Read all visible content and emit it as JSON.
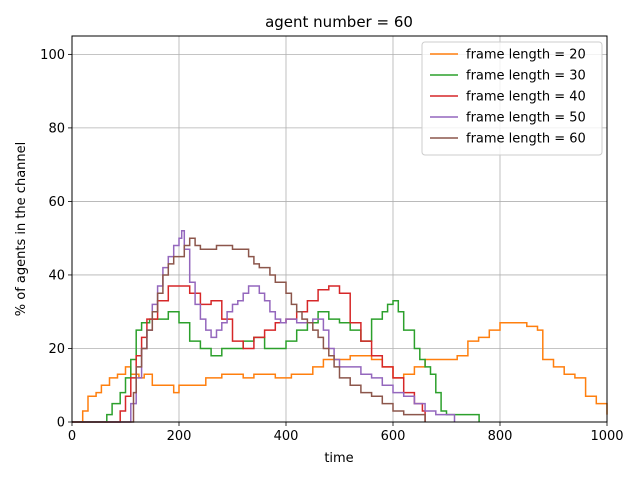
{
  "chart_data": {
    "type": "line",
    "title": "agent number = 60",
    "xlabel": "time",
    "ylabel": "% of agents in the channel",
    "xlim": [
      0,
      1000
    ],
    "ylim": [
      0,
      105
    ],
    "xticks": [
      0,
      200,
      400,
      600,
      800,
      1000
    ],
    "yticks": [
      0,
      20,
      40,
      60,
      80,
      100
    ],
    "grid": true,
    "legend_position": "top-right",
    "series": [
      {
        "name": "frame length = 20",
        "color": "#ff7f0e",
        "x": [
          0,
          15,
          20,
          30,
          45,
          55,
          70,
          85,
          100,
          110,
          125,
          135,
          150,
          180,
          190,
          200,
          220,
          250,
          270,
          280,
          300,
          320,
          340,
          360,
          380,
          395,
          410,
          430,
          450,
          470,
          500,
          520,
          540,
          560,
          580,
          600,
          620,
          640,
          660,
          680,
          700,
          720,
          740,
          760,
          780,
          800,
          830,
          850,
          870,
          880,
          900,
          920,
          940,
          960,
          980,
          1000
        ],
        "y": [
          0,
          0,
          3,
          7,
          8,
          10,
          12,
          13,
          15,
          13,
          12,
          13,
          10,
          10,
          8,
          10,
          10,
          12,
          12,
          13,
          13,
          12,
          13,
          13,
          12,
          12,
          13,
          13,
          15,
          17,
          17,
          18,
          18,
          17,
          15,
          12,
          13,
          15,
          17,
          17,
          17,
          18,
          22,
          23,
          25,
          27,
          27,
          26,
          25,
          17,
          15,
          13,
          12,
          7,
          5,
          2
        ]
      },
      {
        "name": "frame length = 30",
        "color": "#2ca02c",
        "x": [
          0,
          55,
          65,
          75,
          90,
          100,
          110,
          120,
          130,
          145,
          160,
          180,
          200,
          220,
          240,
          260,
          280,
          300,
          320,
          340,
          360,
          380,
          400,
          420,
          440,
          460,
          480,
          500,
          520,
          540,
          560,
          580,
          590,
          600,
          610,
          620,
          640,
          650,
          660,
          670,
          680,
          690,
          700,
          720,
          740,
          760,
          761
        ],
        "y": [
          0,
          0,
          2,
          5,
          8,
          12,
          17,
          25,
          27,
          28,
          28,
          30,
          27,
          22,
          20,
          18,
          20,
          20,
          22,
          23,
          20,
          20,
          22,
          25,
          27,
          30,
          28,
          27,
          25,
          22,
          28,
          30,
          32,
          33,
          30,
          25,
          20,
          17,
          15,
          13,
          8,
          3,
          2,
          2,
          2,
          2,
          0
        ]
      },
      {
        "name": "frame length = 40",
        "color": "#d62728",
        "x": [
          0,
          80,
          90,
          100,
          110,
          120,
          130,
          140,
          160,
          180,
          200,
          220,
          240,
          260,
          280,
          300,
          320,
          340,
          360,
          380,
          400,
          420,
          440,
          460,
          480,
          500,
          520,
          540,
          560,
          580,
          600,
          620,
          640,
          655,
          660
        ],
        "y": [
          0,
          0,
          3,
          7,
          12,
          18,
          23,
          28,
          33,
          37,
          37,
          35,
          32,
          33,
          28,
          22,
          20,
          23,
          25,
          27,
          28,
          30,
          33,
          36,
          37,
          35,
          27,
          22,
          18,
          15,
          12,
          8,
          5,
          3,
          0
        ]
      },
      {
        "name": "frame length = 50",
        "color": "#9467bd",
        "x": [
          0,
          100,
          110,
          120,
          130,
          140,
          150,
          160,
          170,
          180,
          190,
          200,
          205,
          210,
          220,
          230,
          240,
          250,
          260,
          270,
          280,
          290,
          300,
          310,
          320,
          330,
          340,
          350,
          360,
          370,
          380,
          390,
          400,
          410,
          420,
          430,
          440,
          450,
          460,
          470,
          480,
          490,
          500,
          520,
          540,
          560,
          580,
          600,
          620,
          640,
          660,
          680,
          700,
          710,
          715
        ],
        "y": [
          0,
          0,
          5,
          12,
          20,
          25,
          32,
          37,
          42,
          45,
          48,
          50,
          52,
          47,
          38,
          32,
          28,
          25,
          23,
          25,
          27,
          30,
          32,
          33,
          35,
          37,
          37,
          35,
          33,
          30,
          28,
          27,
          28,
          28,
          27,
          27,
          27,
          28,
          28,
          25,
          20,
          17,
          15,
          15,
          13,
          12,
          10,
          8,
          7,
          5,
          3,
          2,
          2,
          2,
          0
        ]
      },
      {
        "name": "frame length = 60",
        "color": "#8c564b",
        "x": [
          0,
          110,
          115,
          120,
          130,
          140,
          150,
          160,
          170,
          180,
          190,
          200,
          210,
          220,
          230,
          240,
          250,
          260,
          270,
          280,
          290,
          300,
          310,
          320,
          330,
          340,
          350,
          360,
          370,
          380,
          390,
          400,
          410,
          420,
          430,
          440,
          450,
          460,
          470,
          480,
          490,
          500,
          520,
          540,
          560,
          580,
          600,
          620,
          640,
          655,
          660
        ],
        "y": [
          0,
          0,
          8,
          15,
          20,
          25,
          30,
          35,
          40,
          43,
          45,
          45,
          48,
          50,
          48,
          47,
          47,
          47,
          48,
          48,
          48,
          47,
          47,
          47,
          45,
          43,
          42,
          42,
          40,
          38,
          38,
          35,
          32,
          30,
          28,
          27,
          25,
          23,
          20,
          18,
          15,
          12,
          10,
          8,
          7,
          5,
          3,
          2,
          2,
          2,
          0
        ]
      }
    ]
  }
}
